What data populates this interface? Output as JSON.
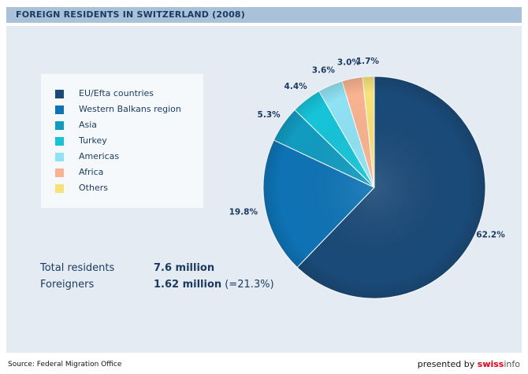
{
  "header": {
    "title": "FOREIGN RESIDENTS IN SWITZERLAND (2008)"
  },
  "chart_data": {
    "type": "pie",
    "title": "FOREIGN RESIDENTS IN SWITZERLAND (2008)",
    "slices": [
      {
        "label": "EU/Efta countries",
        "value": 62.2,
        "value_label": "62.2%",
        "color": "#1a4a78"
      },
      {
        "label": "Western Balkans region",
        "value": 19.8,
        "value_label": "19.8%",
        "color": "#0e73b5"
      },
      {
        "label": "Asia",
        "value": 5.3,
        "value_label": "5.3%",
        "color": "#129bc0"
      },
      {
        "label": "Turkey",
        "value": 4.4,
        "value_label": "4.4%",
        "color": "#16c4d8"
      },
      {
        "label": "Americas",
        "value": 3.6,
        "value_label": "3.6%",
        "color": "#8fe2f4"
      },
      {
        "label": "Africa",
        "value": 3.0,
        "value_label": "3.0%",
        "color": "#f9b390"
      },
      {
        "label": "Others",
        "value": 1.7,
        "value_label": "1.7%",
        "color": "#f7e27a"
      }
    ],
    "legend_position": "left"
  },
  "stats": {
    "total_label": "Total residents",
    "total_value": "7.6 million",
    "foreigners_label": "Foreigners",
    "foreigners_value_bold": "1.62 million",
    "foreigners_value_rest": " (=21.3%)"
  },
  "footer": {
    "source": "Source: Federal Migration Office",
    "presented_by": "presented by ",
    "brand_a": "swiss",
    "brand_b": "info"
  }
}
